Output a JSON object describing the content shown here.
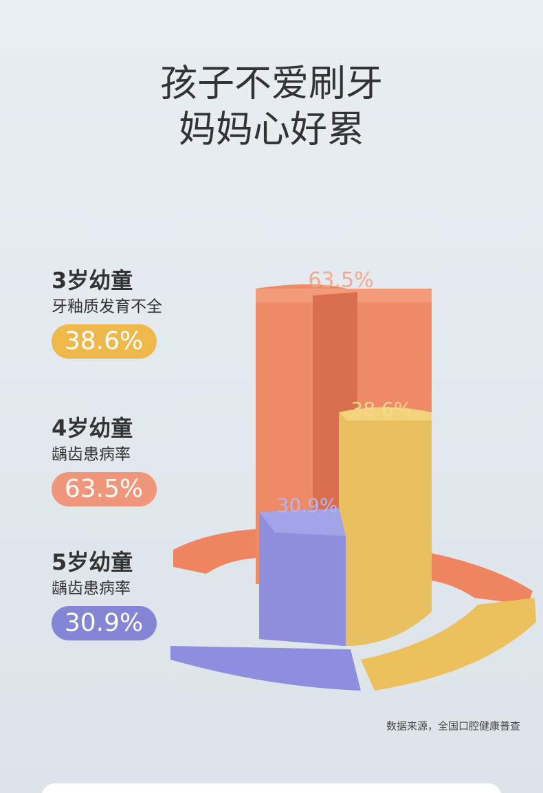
{
  "title": {
    "line1": "孩子不爱刷牙",
    "line2": "妈妈心好累"
  },
  "stats": [
    {
      "age": "3岁幼童",
      "desc": "牙釉质发育不全",
      "value": "38.6%",
      "color": "#efb84a"
    },
    {
      "age": "4岁幼童",
      "desc": "龋齿患病率",
      "value": "63.5%",
      "color": "#f0977b"
    },
    {
      "age": "5岁幼童",
      "desc": "龋齿患病率",
      "value": "30.9%",
      "color": "#8585d6"
    }
  ],
  "pillars": [
    {
      "label": "63.5%"
    },
    {
      "label": "38.6%"
    },
    {
      "label": "30.9%"
    }
  ],
  "source": "数据来源，全国口腔健康普查"
}
